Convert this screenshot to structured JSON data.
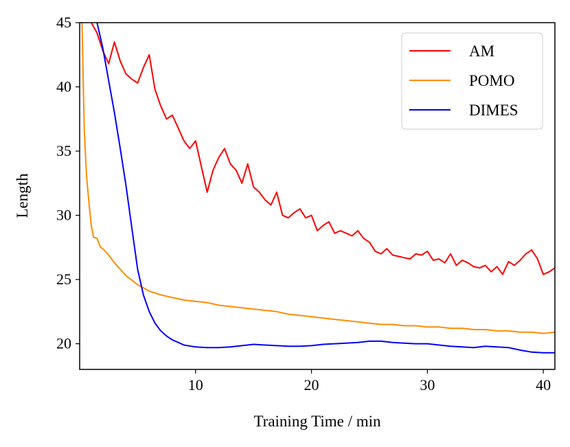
{
  "chart_data": {
    "type": "line",
    "title": "",
    "xlabel": "Training Time / min",
    "ylabel": "Length",
    "xlim": [
      0,
      41
    ],
    "ylim": [
      18,
      45
    ],
    "xticks": [
      10,
      20,
      30,
      40
    ],
    "yticks": [
      20,
      25,
      30,
      35,
      40,
      45
    ],
    "grid": false,
    "legend_position": "top-right",
    "series": [
      {
        "name": "AM",
        "color": "#ff0000",
        "x": [
          1.0,
          1.5,
          2.0,
          2.5,
          3.0,
          3.5,
          4.0,
          4.5,
          5.0,
          5.5,
          6.0,
          6.5,
          7.0,
          7.5,
          8.0,
          8.5,
          9.0,
          9.5,
          10.0,
          10.5,
          11.0,
          11.5,
          12.0,
          12.5,
          13.0,
          13.5,
          14.0,
          14.5,
          15.0,
          15.5,
          16.0,
          16.5,
          17.0,
          17.5,
          18.0,
          18.5,
          19.0,
          19.5,
          20.0,
          20.5,
          21.0,
          21.5,
          22.0,
          22.5,
          23.0,
          23.5,
          24.0,
          24.5,
          25.0,
          25.5,
          26.0,
          26.5,
          27.0,
          27.5,
          28.0,
          28.5,
          29.0,
          29.5,
          30.0,
          30.5,
          31.0,
          31.5,
          32.0,
          32.5,
          33.0,
          33.5,
          34.0,
          34.5,
          35.0,
          35.5,
          36.0,
          36.5,
          37.0,
          37.5,
          38.0,
          38.5,
          39.0,
          39.5,
          40.0,
          40.5,
          41.0
        ],
        "values": [
          45.0,
          44.2,
          42.8,
          41.8,
          43.5,
          42.0,
          41.0,
          40.6,
          40.3,
          41.5,
          42.5,
          39.8,
          38.5,
          37.5,
          37.8,
          36.8,
          35.8,
          35.2,
          35.8,
          33.8,
          31.8,
          33.5,
          34.5,
          35.2,
          34.0,
          33.5,
          32.5,
          34.0,
          32.2,
          31.8,
          31.2,
          30.8,
          31.8,
          30.0,
          29.8,
          30.2,
          30.5,
          29.8,
          30.0,
          28.8,
          29.2,
          29.5,
          28.6,
          28.8,
          28.6,
          28.4,
          28.8,
          28.2,
          27.9,
          27.2,
          27.0,
          27.4,
          26.9,
          26.8,
          26.7,
          26.6,
          27.0,
          26.9,
          27.2,
          26.5,
          26.6,
          26.3,
          27.0,
          26.1,
          26.5,
          26.3,
          26.0,
          25.9,
          26.1,
          25.6,
          26.0,
          25.4,
          26.4,
          26.1,
          26.5,
          27.0,
          27.3,
          26.6,
          25.4,
          25.6,
          25.9
        ]
      },
      {
        "name": "POMO",
        "color": "#ff8c00",
        "x": [
          0.2,
          0.4,
          0.6,
          0.8,
          1.0,
          1.2,
          1.5,
          1.8,
          2.0,
          2.5,
          3.0,
          3.5,
          4.0,
          5.0,
          6.0,
          7.0,
          8.0,
          9.0,
          10.0,
          11.0,
          12.0,
          13.0,
          14.0,
          15.0,
          16.0,
          17.0,
          18.0,
          19.0,
          20.0,
          21.0,
          22.0,
          23.0,
          24.0,
          25.0,
          26.0,
          27.0,
          28.0,
          29.0,
          30.0,
          31.0,
          32.0,
          33.0,
          34.0,
          35.0,
          36.0,
          37.0,
          38.0,
          39.0,
          40.0,
          41.0
        ],
        "values": [
          45.0,
          36.5,
          33.0,
          31.0,
          29.2,
          28.3,
          28.2,
          27.5,
          27.4,
          26.9,
          26.3,
          25.8,
          25.3,
          24.6,
          24.1,
          23.8,
          23.6,
          23.4,
          23.3,
          23.2,
          23.0,
          22.9,
          22.8,
          22.7,
          22.6,
          22.5,
          22.3,
          22.2,
          22.1,
          22.0,
          21.9,
          21.8,
          21.7,
          21.6,
          21.5,
          21.5,
          21.4,
          21.4,
          21.3,
          21.3,
          21.2,
          21.2,
          21.1,
          21.1,
          21.0,
          21.0,
          20.9,
          20.9,
          20.8,
          20.9
        ]
      },
      {
        "name": "DIMES",
        "color": "#0000ff",
        "x": [
          1.5,
          2.0,
          2.5,
          3.0,
          3.5,
          4.0,
          4.5,
          5.0,
          5.5,
          6.0,
          6.5,
          7.0,
          7.5,
          8.0,
          8.5,
          9.0,
          10.0,
          11.0,
          12.0,
          13.0,
          14.0,
          15.0,
          16.0,
          17.0,
          18.0,
          19.0,
          20.0,
          21.0,
          22.0,
          23.0,
          24.0,
          25.0,
          26.0,
          27.0,
          28.0,
          29.0,
          30.0,
          31.0,
          32.0,
          33.0,
          34.0,
          35.0,
          36.0,
          37.0,
          38.0,
          39.0,
          40.0,
          41.0
        ],
        "values": [
          45.0,
          43.0,
          40.5,
          38.0,
          35.2,
          32.3,
          29.0,
          25.8,
          23.8,
          22.5,
          21.6,
          21.0,
          20.6,
          20.3,
          20.1,
          19.9,
          19.75,
          19.7,
          19.7,
          19.75,
          19.85,
          19.95,
          19.9,
          19.85,
          19.8,
          19.8,
          19.85,
          19.95,
          20.0,
          20.05,
          20.1,
          20.2,
          20.2,
          20.1,
          20.05,
          20.0,
          20.0,
          19.9,
          19.8,
          19.75,
          19.7,
          19.8,
          19.75,
          19.7,
          19.5,
          19.35,
          19.3,
          19.3
        ]
      }
    ]
  }
}
